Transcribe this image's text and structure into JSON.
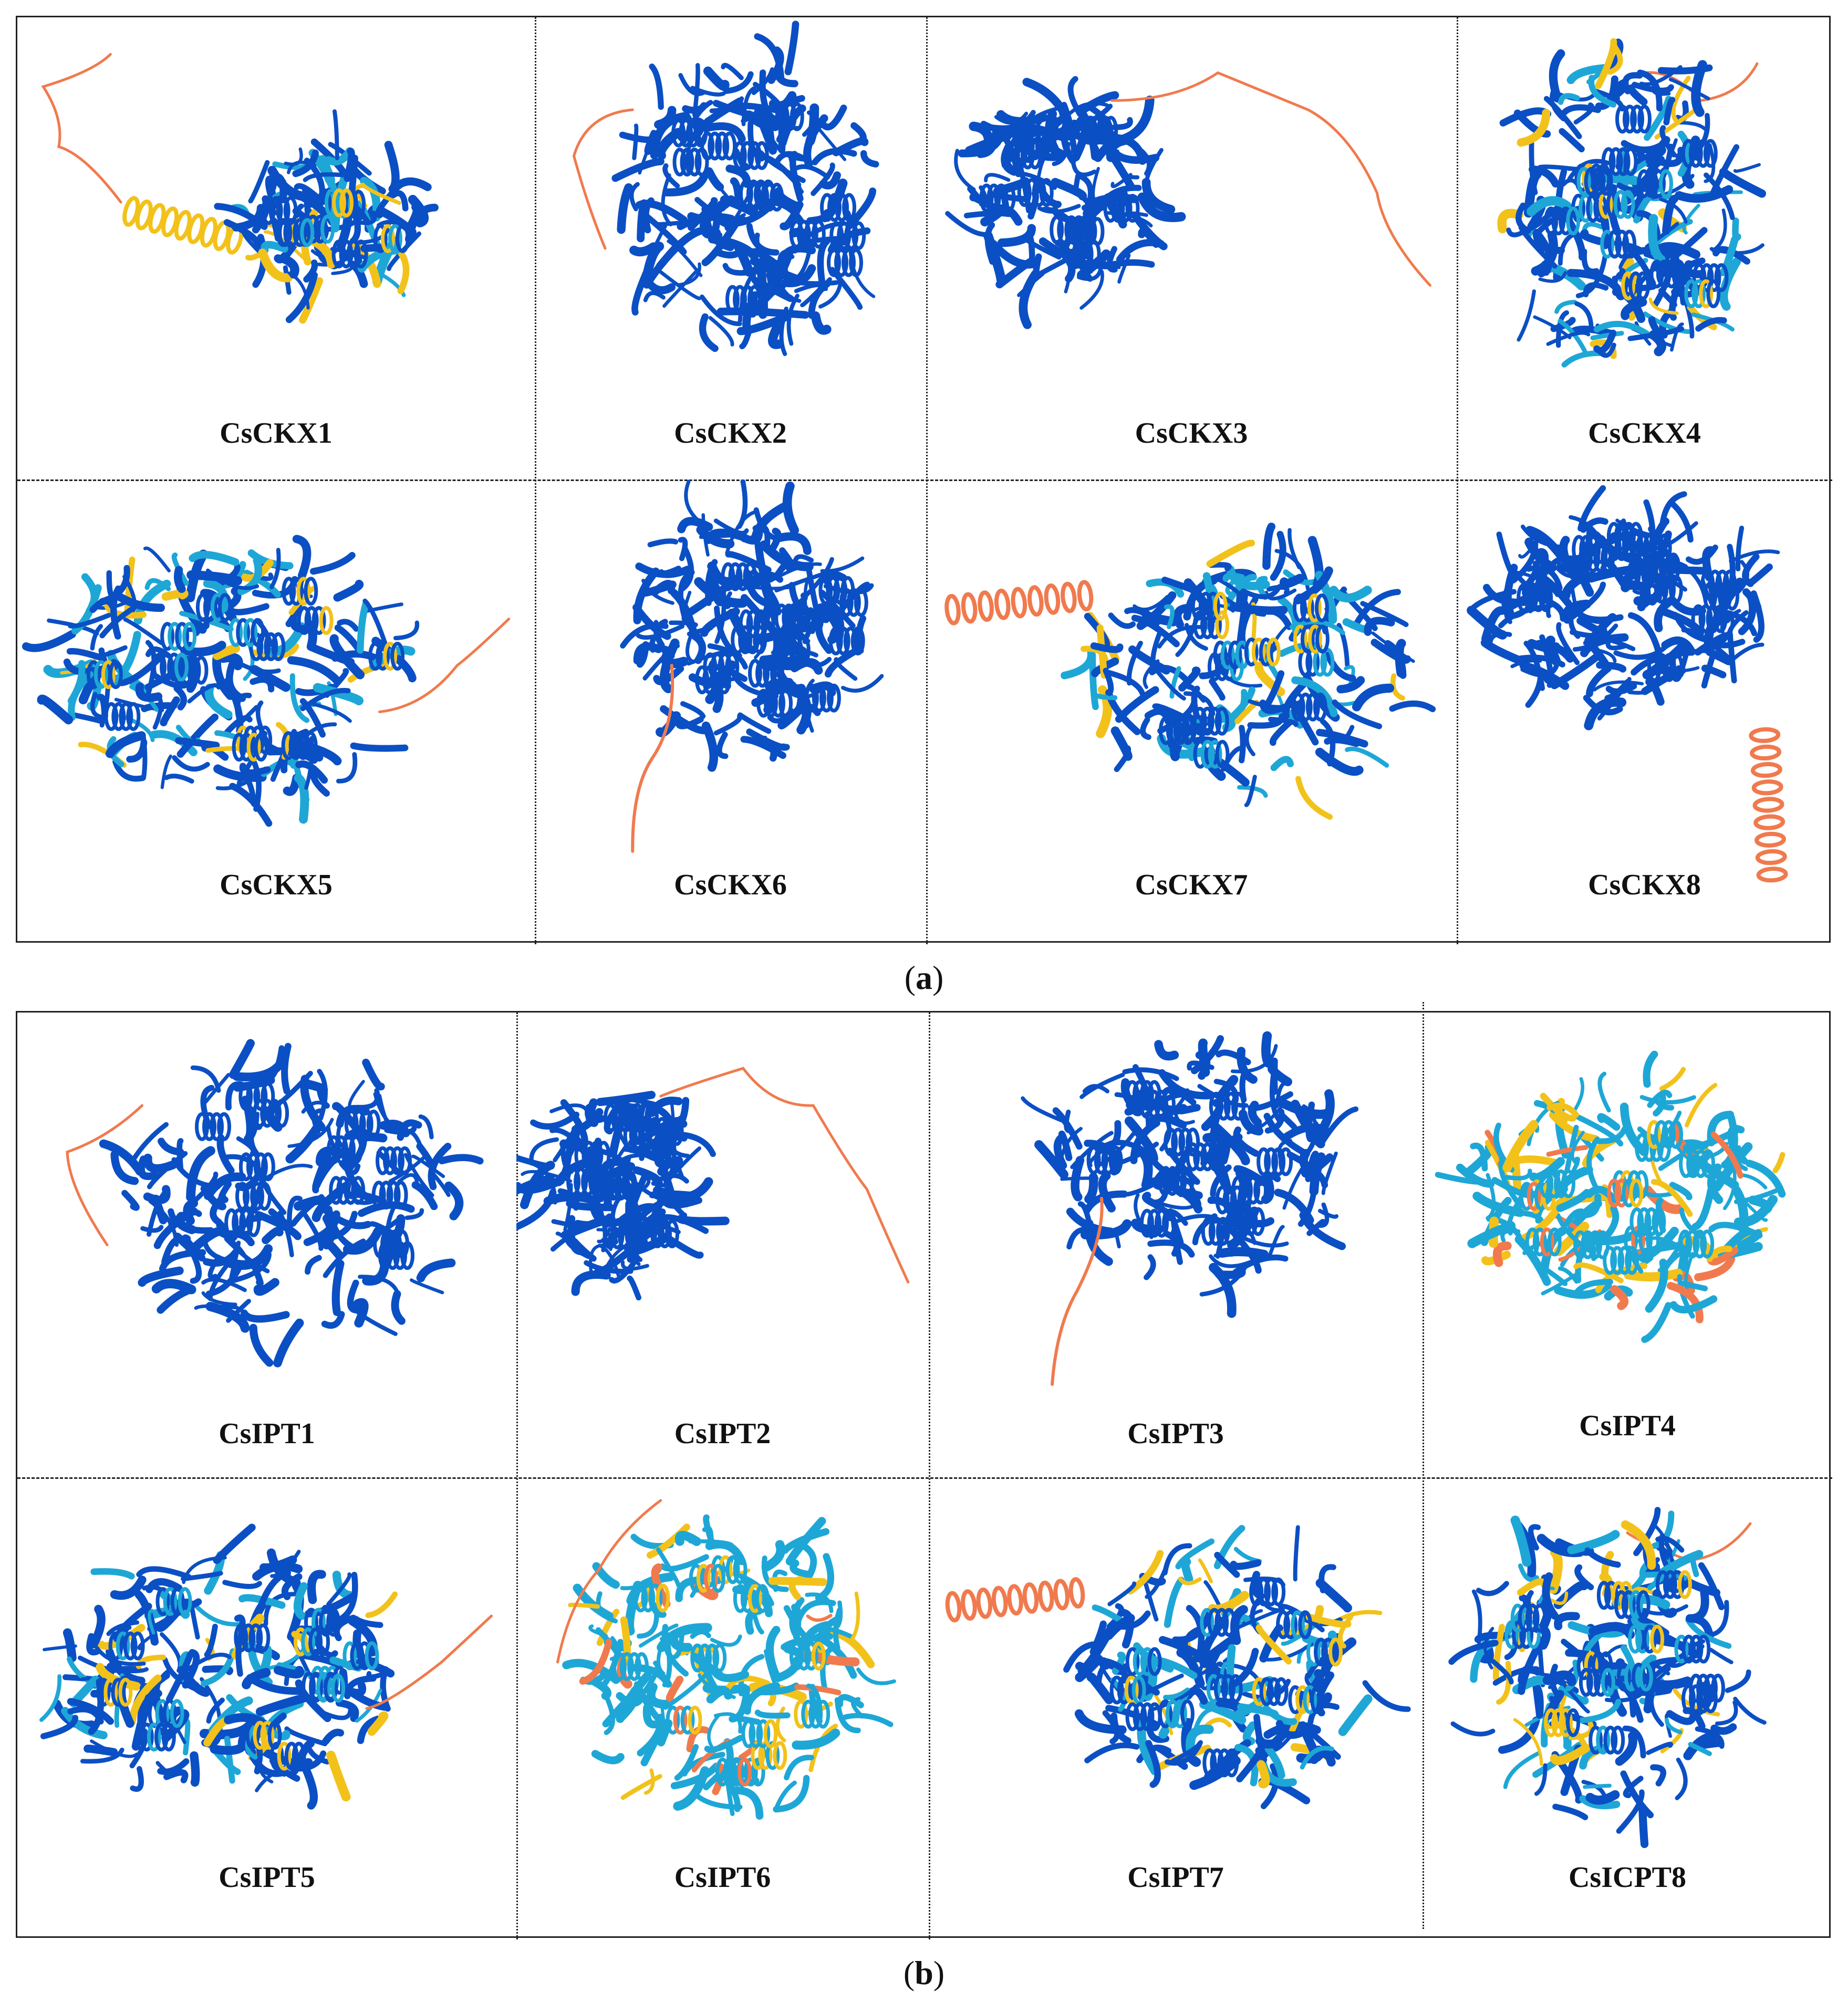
{
  "panel_a": {
    "caption": {
      "open": "(",
      "letter": "a",
      "close": ")"
    },
    "cells": [
      {
        "label": "CsCKX1",
        "style": "tail-helix"
      },
      {
        "label": "CsCKX2",
        "style": "compact"
      },
      {
        "label": "CsCKX3",
        "style": "long-tail"
      },
      {
        "label": "CsCKX4",
        "style": "compact-mixed"
      },
      {
        "label": "CsCKX5",
        "style": "wide"
      },
      {
        "label": "CsCKX6",
        "style": "down-tail"
      },
      {
        "label": "CsCKX7",
        "style": "left-helix"
      },
      {
        "label": "CsCKX8",
        "style": "right-helix"
      }
    ]
  },
  "panel_b": {
    "caption": {
      "open": "(",
      "letter": "b",
      "close": ")"
    },
    "cells": [
      {
        "label": "CsIPT1",
        "style": "compact"
      },
      {
        "label": "CsIPT2",
        "style": "long-tail"
      },
      {
        "label": "CsIPT3",
        "style": "down-tail"
      },
      {
        "label": "CsIPT4",
        "style": "cyan"
      },
      {
        "label": "CsIPT5",
        "style": "wide"
      },
      {
        "label": "CsIPT6",
        "style": "mixed"
      },
      {
        "label": "CsIPT7",
        "style": "left-helix"
      },
      {
        "label": "CsICPT8",
        "style": "compact-mixed"
      }
    ]
  },
  "colors": {
    "very_high": "#0b4fc4",
    "confident": "#1ea7d6",
    "low": "#f2c21b",
    "very_low": "#f07a4e"
  }
}
